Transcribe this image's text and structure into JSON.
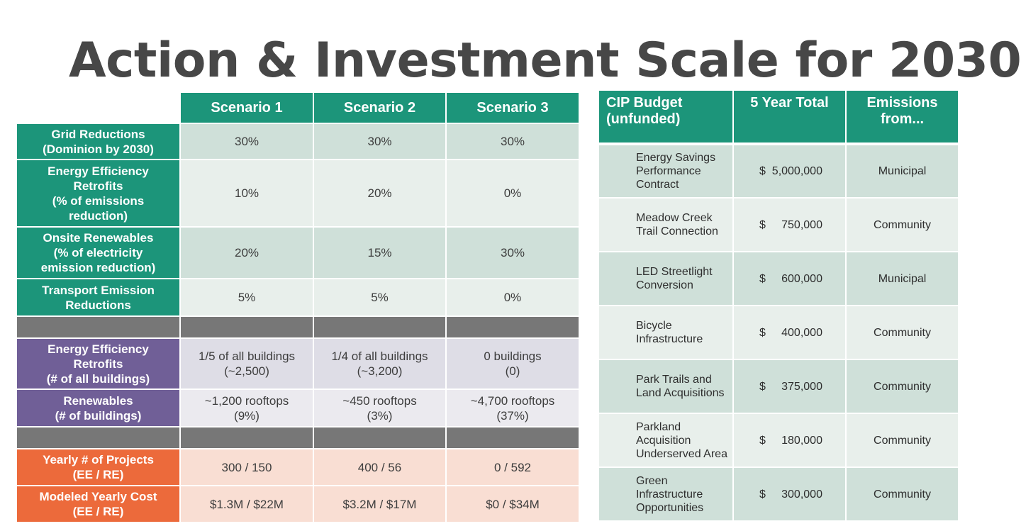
{
  "title": "Action & Investment Scale for 2030",
  "scenarios_table": {
    "columns": [
      "Scenario 1",
      "Scenario 2",
      "Scenario 3"
    ],
    "rows": [
      {
        "label": "Grid Reductions\n(Dominion by 2030)",
        "values": [
          "30%",
          "30%",
          "30%"
        ]
      },
      {
        "label": "Energy Efficiency\nRetrofits\n(% of emissions\nreduction)",
        "values": [
          "10%",
          "20%",
          "0%"
        ]
      },
      {
        "label": "Onsite Renewables\n(% of electricity\nemission reduction)",
        "values": [
          "20%",
          "15%",
          "30%"
        ]
      },
      {
        "label": "Transport Emission\nReductions",
        "values": [
          "5%",
          "5%",
          "0%"
        ]
      },
      {
        "label": "Energy Efficiency\nRetrofits\n(# of all buildings)",
        "values": [
          "1/5 of all buildings\n(~2,500)",
          "1/4 of all buildings\n(~3,200)",
          "0 buildings\n(0)"
        ]
      },
      {
        "label": "Renewables\n(# of buildings)",
        "values": [
          "~1,200 rooftops\n(9%)",
          "~450 rooftops\n(3%)",
          "~4,700 rooftops\n(37%)"
        ]
      },
      {
        "label": "Yearly # of Projects\n(EE / RE)",
        "values": [
          "300 / 150",
          "400 / 56",
          "0 / 592"
        ]
      },
      {
        "label": "Modeled Yearly Cost\n(EE / RE)",
        "values": [
          "$1.3M / $22M",
          "$3.2M / $17M",
          "$0 / $34M"
        ]
      }
    ]
  },
  "cip_table": {
    "headers": [
      "CIP Budget\n(unfunded)",
      "5 Year Total",
      "Emissions\nfrom..."
    ],
    "rows": [
      {
        "project": "Energy Savings\nPerformance\nContract",
        "amount": "$  5,000,000",
        "emissions": "Municipal"
      },
      {
        "project": "Meadow Creek\nTrail Connection",
        "amount": "$     750,000",
        "emissions": "Community"
      },
      {
        "project": "LED Streetlight\nConversion",
        "amount": "$     600,000",
        "emissions": "Municipal"
      },
      {
        "project": "Bicycle\nInfrastructure",
        "amount": "$     400,000",
        "emissions": "Community"
      },
      {
        "project": "Park Trails and\nLand Acquisitions",
        "amount": "$     375,000",
        "emissions": "Community"
      },
      {
        "project": "Parkland\nAcquisition\nUnderserved Area",
        "amount": "$     180,000",
        "emissions": "Community"
      },
      {
        "project": "Green\nInfrastructure\nOpportunities",
        "amount": "$     300,000",
        "emissions": "Community"
      }
    ]
  }
}
